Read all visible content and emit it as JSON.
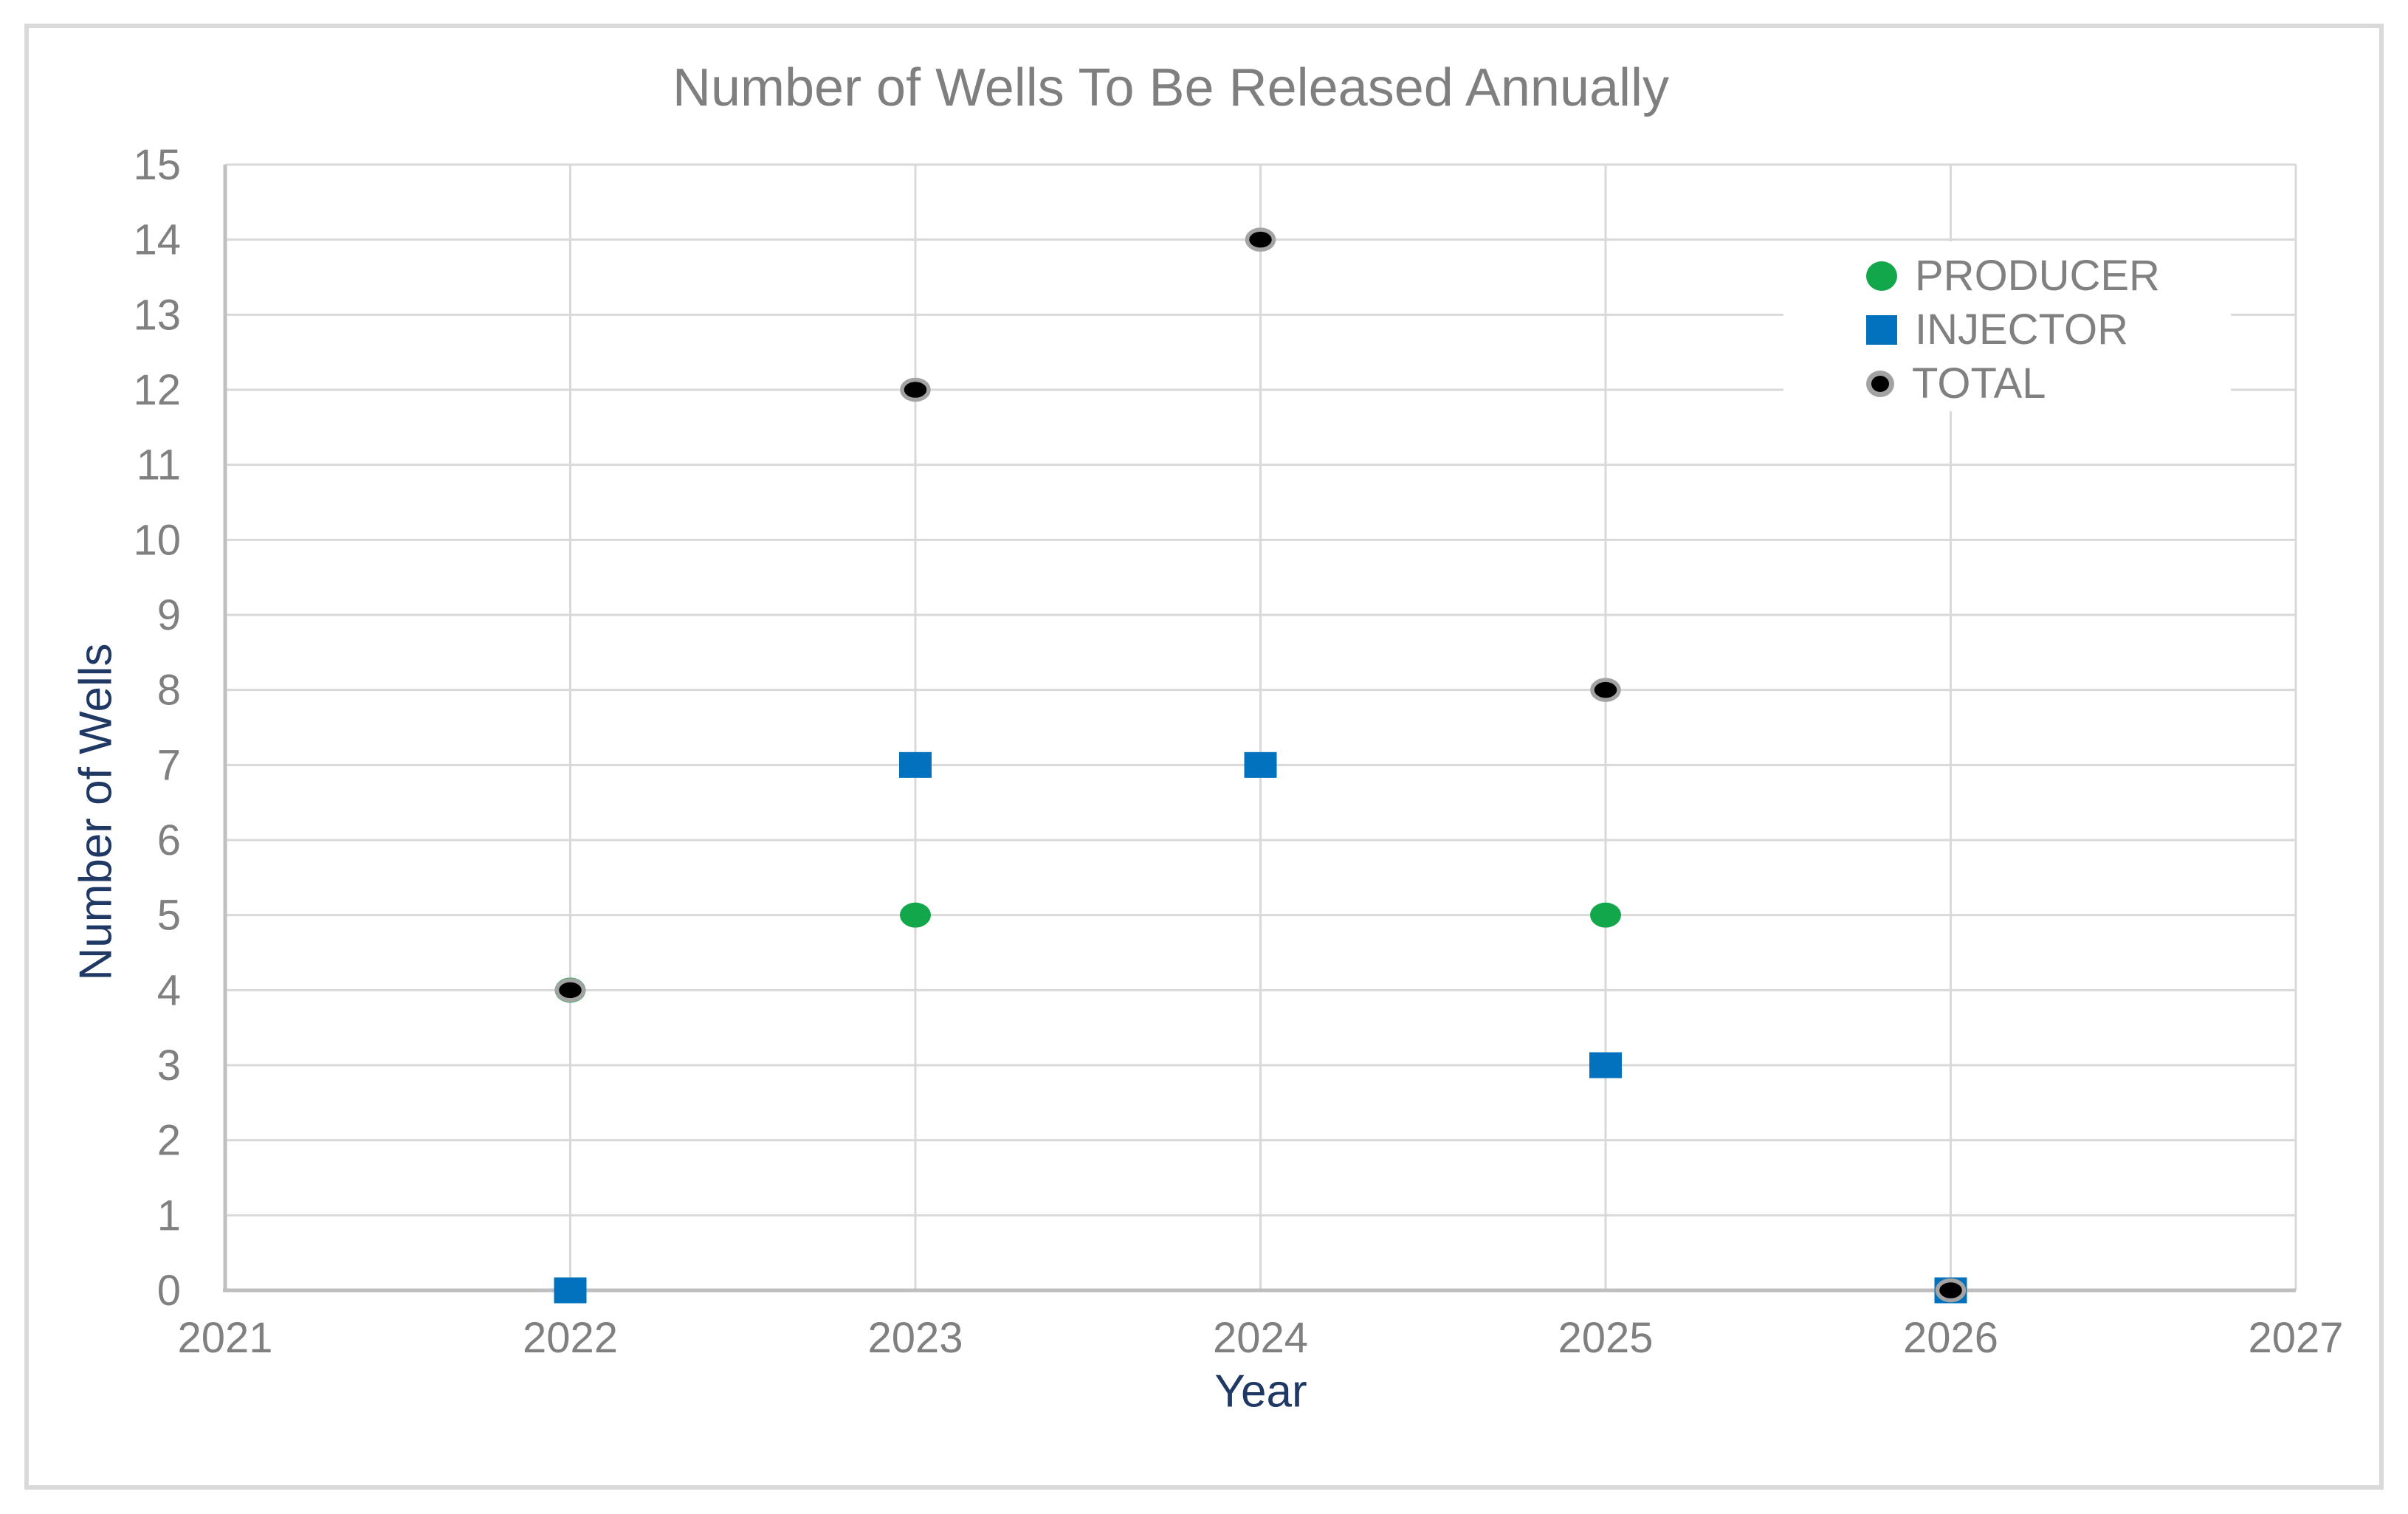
{
  "window": {
    "background": "#FFFFFF",
    "border_color": "#D9D9D9"
  },
  "chart_data": {
    "type": "scatter",
    "title": "Number of Wells To Be Released Annually",
    "xlabel": "Year",
    "ylabel": "Number of Wells",
    "xlim": [
      2021,
      2027
    ],
    "ylim": [
      0,
      15
    ],
    "x_ticks": [
      2021,
      2022,
      2023,
      2024,
      2025,
      2026,
      2027
    ],
    "y_ticks": [
      0,
      1,
      2,
      3,
      4,
      5,
      6,
      7,
      8,
      9,
      10,
      11,
      12,
      13,
      14,
      15
    ],
    "grid": "on",
    "legend_position": "inside-top-right",
    "series": [
      {
        "name": "PRODUCER",
        "marker": "circle",
        "color": "#12A74B",
        "points": [
          [
            2022,
            4
          ],
          [
            2023,
            5
          ],
          [
            2024,
            7
          ],
          [
            2025,
            5
          ],
          [
            2026,
            0
          ]
        ]
      },
      {
        "name": "INJECTOR",
        "marker": "square",
        "color": "#0272BE",
        "points": [
          [
            2022,
            0
          ],
          [
            2023,
            7
          ],
          [
            2024,
            7
          ],
          [
            2025,
            3
          ],
          [
            2026,
            0
          ]
        ]
      },
      {
        "name": "TOTAL",
        "marker": "circle-ring",
        "color": "#000000",
        "ring_color": "#A3A3A3",
        "points": [
          [
            2022,
            4
          ],
          [
            2023,
            12
          ],
          [
            2024,
            14
          ],
          [
            2025,
            8
          ],
          [
            2026,
            0
          ]
        ]
      }
    ],
    "styles": {
      "gridline_color": "#D9D9D9",
      "axis_color": "#BFBFBF",
      "tick_label_color": "#808080",
      "title_color": "#7F7F7F",
      "axis_title_color": "#1F3864",
      "legend_text_color": "#808080"
    }
  }
}
